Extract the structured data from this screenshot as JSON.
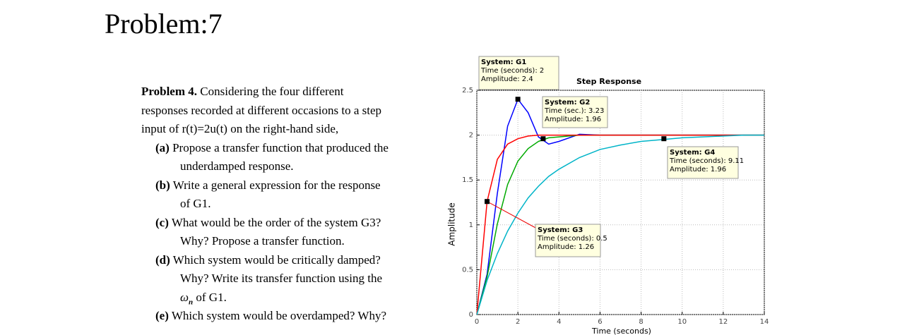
{
  "header": {
    "title": "Problem:7"
  },
  "problem": {
    "intro_lead": "Problem 4.",
    "intro_lines": [
      " Considering the four different",
      "responses recorded at different occasions to a step",
      "input of r(t)=2u(t) on the right-hand side,"
    ],
    "items": [
      {
        "label": "(a)",
        "lines": [
          "Propose a transfer function that produced the",
          "underdamped response."
        ]
      },
      {
        "label": "(b)",
        "lines": [
          "Write a general expression for the response",
          "of G1."
        ]
      },
      {
        "label": "(c)",
        "lines": [
          "What would be the order of the system G3?",
          "Why? Propose a transfer function."
        ]
      },
      {
        "label": "(d)",
        "lines": [
          "Which system would be critically damped?",
          "Why? Write its transfer function using the"
        ],
        "omega": "ω",
        "omega_sub": "n",
        "omega_tail": " of G1."
      },
      {
        "label": "(e)",
        "lines": [
          "Which system would be overdamped? Why?"
        ]
      }
    ]
  },
  "chart_data": {
    "type": "line",
    "title": "Step Response",
    "x_label": "Time (seconds)",
    "y_label": "Amplitude",
    "x": [
      0,
      0.5,
      1,
      1.5,
      2,
      2.5,
      3,
      3.5,
      4,
      5,
      6,
      7,
      8,
      9,
      10,
      11,
      12,
      13,
      14
    ],
    "series": [
      {
        "name": "G1",
        "color": "#0000ff",
        "values": [
          0,
          0.45,
          1.35,
          2.1,
          2.4,
          2.25,
          1.98,
          1.9,
          1.93,
          2.01,
          2,
          2,
          2,
          2,
          2,
          2,
          2,
          2,
          2
        ]
      },
      {
        "name": "G2",
        "color": "#00aa00",
        "values": [
          0,
          0.42,
          1.01,
          1.45,
          1.71,
          1.85,
          1.93,
          1.97,
          1.98,
          2,
          2,
          2,
          2,
          2,
          2,
          2,
          2,
          2,
          2
        ]
      },
      {
        "name": "G3",
        "color": "#ff0000",
        "values": [
          0,
          1.26,
          1.73,
          1.9,
          1.96,
          1.99,
          2,
          2,
          2,
          2,
          2,
          2,
          2,
          2,
          2,
          2,
          2,
          2,
          2
        ]
      },
      {
        "name": "G4",
        "color": "#00b4c8",
        "values": [
          0,
          0.38,
          0.68,
          0.93,
          1.13,
          1.3,
          1.43,
          1.54,
          1.62,
          1.75,
          1.84,
          1.89,
          1.93,
          1.95,
          1.97,
          1.98,
          1.99,
          2,
          2
        ]
      }
    ],
    "xlim": [
      0,
      14
    ],
    "ylim": [
      0,
      2.5
    ],
    "xticks": [
      0,
      2,
      4,
      6,
      8,
      10,
      12,
      14
    ],
    "yticks": [
      0,
      0.5,
      1,
      1.5,
      2,
      2.5
    ],
    "grid": true,
    "datatips": [
      {
        "lines": [
          "System: G1",
          "Time (seconds): 2",
          "Amplitude: 2.4"
        ],
        "x": 2,
        "y": 2.4
      },
      {
        "lines": [
          "System: G2",
          "Time (sec.): 3.23",
          "Amplitude: 1.96"
        ],
        "x": 3.23,
        "y": 1.96
      },
      {
        "lines": [
          "System: G3",
          "Time (seconds): 0.5",
          "Amplitude: 1.26"
        ],
        "x": 0.5,
        "y": 1.26
      },
      {
        "lines": [
          "System: G4",
          "Time (seconds): 9.11",
          "Amplitude: 1.96"
        ],
        "x": 9.11,
        "y": 1.96
      }
    ]
  }
}
